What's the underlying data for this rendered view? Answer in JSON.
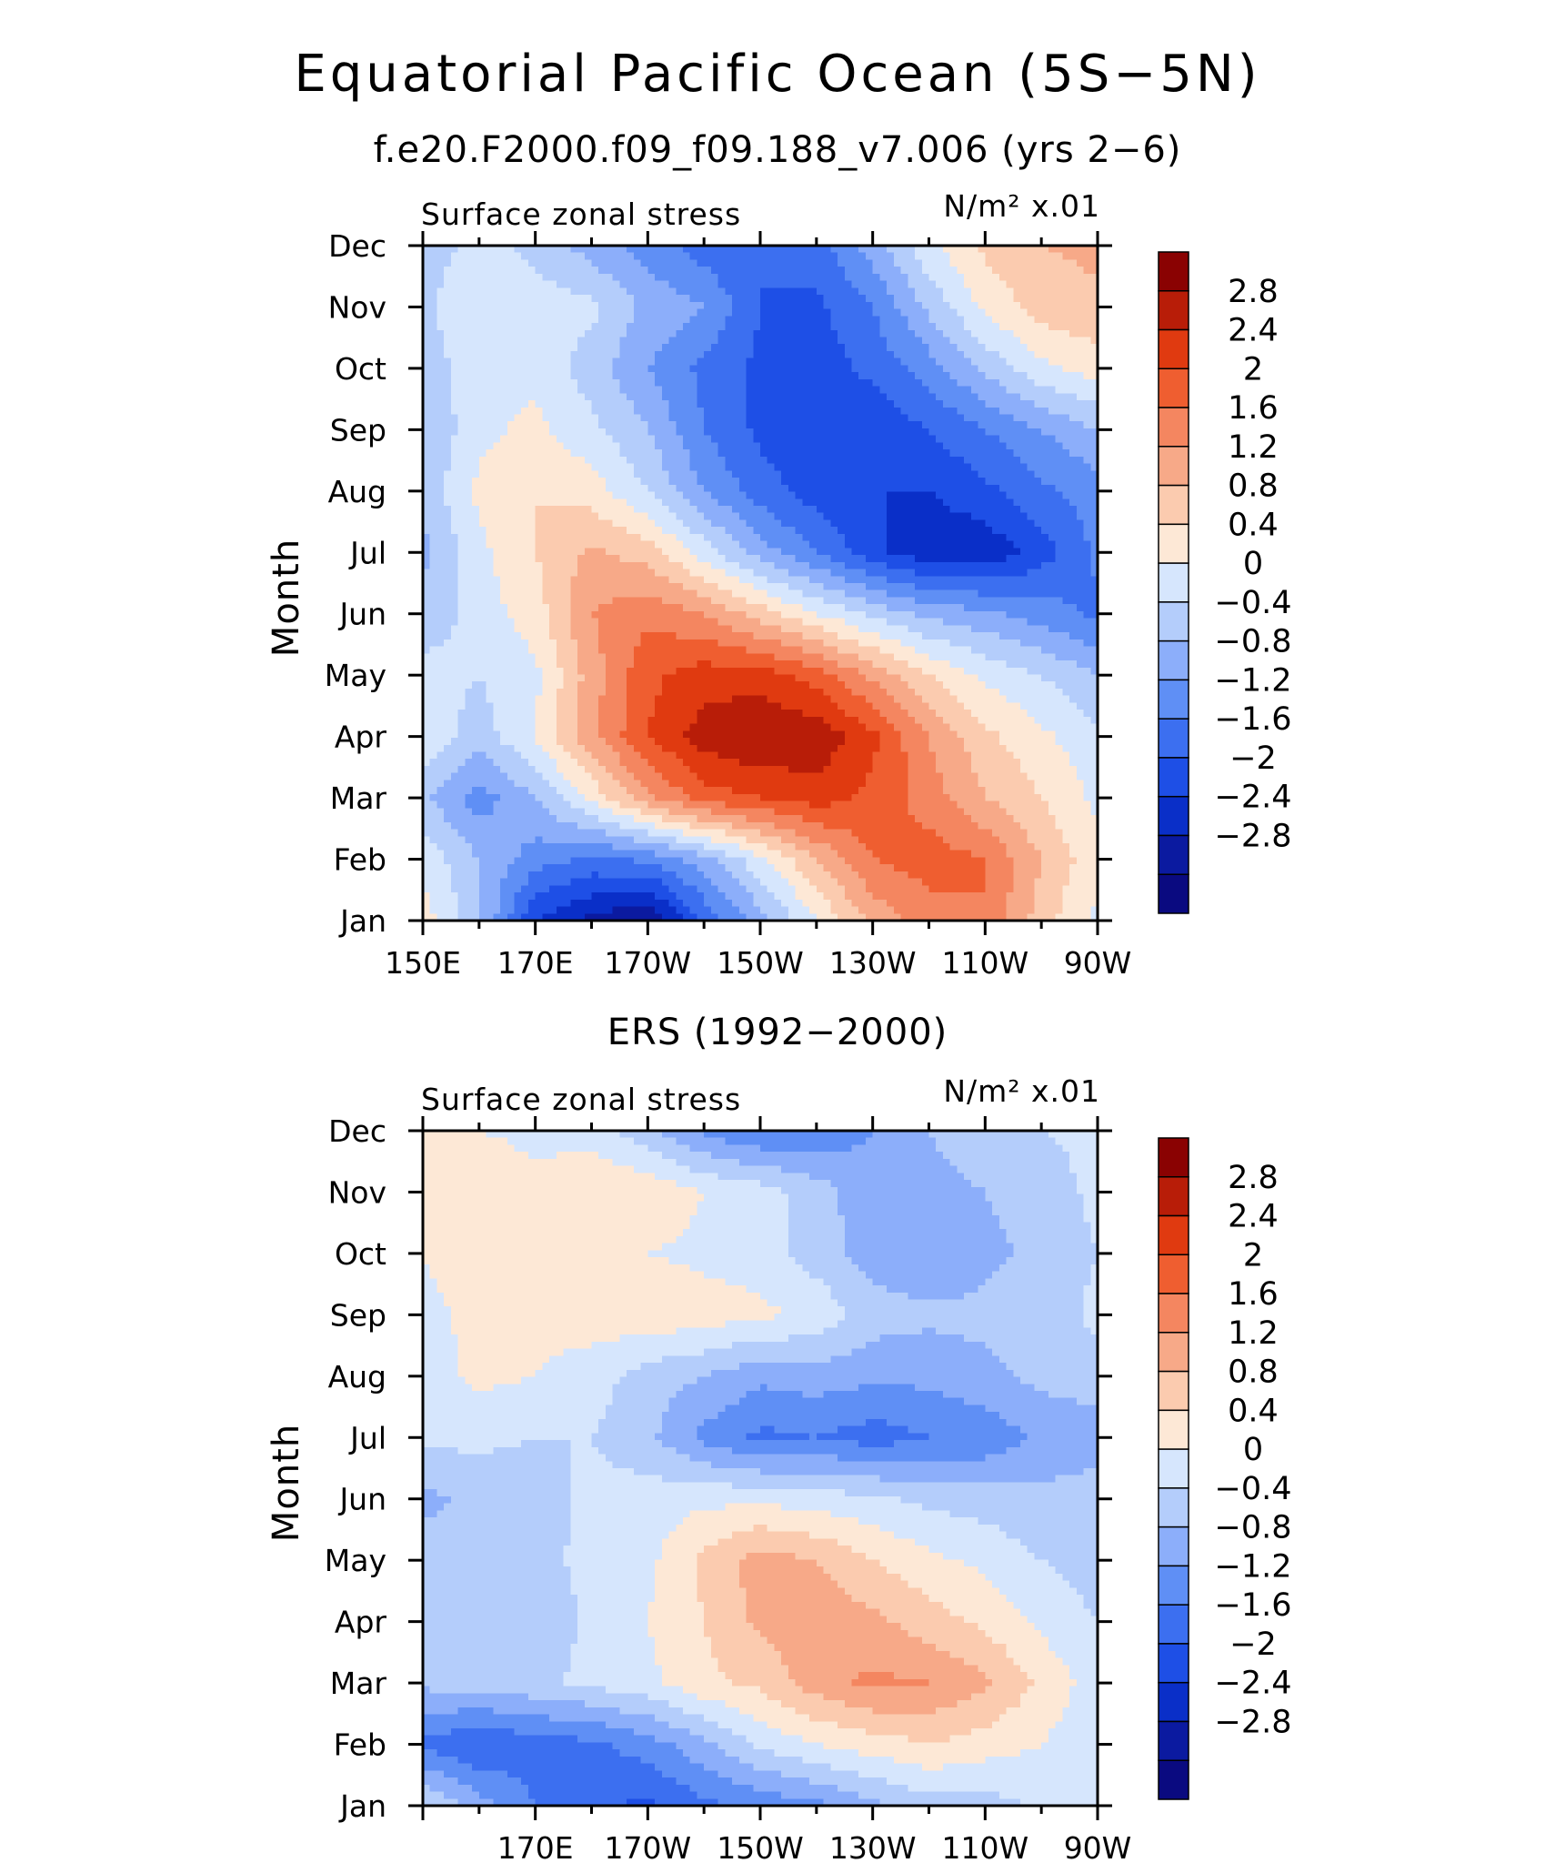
{
  "title": "Equatorial Pacific Ocean (5S−5N)",
  "palette": [
    "#0a0a80",
    "#0b1aa0",
    "#0a2fc8",
    "#1e4fe6",
    "#3c6ff0",
    "#5f8ff5",
    "#8caefa",
    "#b4cdfb",
    "#d6e6fd",
    "#fde8d6",
    "#fbcbaf",
    "#f7a988",
    "#f48660",
    "#ef5e30",
    "#e03a10",
    "#b81d08",
    "#8a0202"
  ],
  "colorbar_labels": [
    "2.8",
    "2.4",
    "2",
    "1.6",
    "1.2",
    "0.8",
    "0.4",
    "0",
    "−0.4",
    "−0.8",
    "−1.2",
    "−1.6",
    "−2",
    "−2.4",
    "−2.8"
  ],
  "chart_data": [
    {
      "type": "heatmap",
      "subtitle": "f.e20.F2000.f09_f09.188_v7.006 (yrs 2−6)",
      "left_label": "Surface zonal stress",
      "right_label": "N/m² x.01",
      "ylabel": "Month",
      "months": [
        "Jan",
        "Feb",
        "Mar",
        "Apr",
        "May",
        "Jun",
        "Jul",
        "Aug",
        "Sep",
        "Oct",
        "Nov",
        "Dec"
      ],
      "xtick_labels": [
        "150E",
        "170E",
        "170W",
        "150W",
        "130W",
        "110W",
        "90W"
      ],
      "xtick_lons": [
        150,
        170,
        190,
        210,
        230,
        250,
        270
      ],
      "xlim": [
        150,
        270
      ],
      "levels": [
        -2.8,
        -2.4,
        -2,
        -1.6,
        -1.2,
        -0.8,
        -0.4,
        0,
        0.4,
        0.8,
        1.2,
        1.6,
        2,
        2.4,
        2.8
      ],
      "lons": [
        150,
        160,
        170,
        180,
        190,
        200,
        210,
        220,
        230,
        240,
        250,
        260,
        270
      ],
      "values": [
        [
          0.6,
          -0.3,
          -2.0,
          -2.5,
          -2.9,
          -1.5,
          -0.6,
          0.4,
          1.3,
          1.8,
          2.0,
          1.0,
          0.3
        ],
        [
          0.3,
          -0.4,
          -1.0,
          -1.3,
          -1.1,
          -0.6,
          0.3,
          1.2,
          2.0,
          2.2,
          2.0,
          1.2,
          0.5
        ],
        [
          -0.3,
          -1.0,
          -0.4,
          0.5,
          1.5,
          2.2,
          2.4,
          2.6,
          2.3,
          1.8,
          1.2,
          0.8,
          0.3
        ],
        [
          0.3,
          -0.2,
          0.4,
          1.5,
          2.4,
          3.0,
          3.2,
          3.1,
          2.5,
          1.6,
          0.9,
          0.5,
          0.1
        ],
        [
          0.2,
          0.0,
          0.3,
          1.4,
          2.3,
          2.6,
          2.6,
          2.2,
          1.5,
          0.8,
          0.3,
          0.0,
          -0.4
        ],
        [
          -0.3,
          0.2,
          0.6,
          1.6,
          1.9,
          1.6,
          1.0,
          0.4,
          -0.1,
          -0.5,
          -0.7,
          -1.0,
          -1.3
        ],
        [
          -0.5,
          0.3,
          0.8,
          1.3,
          1.0,
          0.2,
          -0.6,
          -1.2,
          -1.9,
          -2.3,
          -2.3,
          -1.8,
          -1.1
        ],
        [
          -0.3,
          0.5,
          0.8,
          0.6,
          0.0,
          -0.8,
          -1.4,
          -1.8,
          -2.0,
          -2.0,
          -1.7,
          -1.3,
          -1.0
        ],
        [
          -0.4,
          0.3,
          0.5,
          0.1,
          -0.4,
          -1.2,
          -1.7,
          -2.0,
          -1.9,
          -1.6,
          -1.2,
          -0.8,
          -0.4
        ],
        [
          -0.2,
          0.2,
          0.3,
          -0.2,
          -0.8,
          -1.3,
          -1.7,
          -1.8,
          -1.5,
          -1.0,
          -0.3,
          0.3,
          0.6
        ],
        [
          -0.1,
          0.4,
          0.2,
          0.1,
          -0.5,
          -0.8,
          -1.6,
          -1.7,
          -1.2,
          -0.3,
          0.5,
          1.0,
          1.1
        ],
        [
          -0.2,
          0.1,
          -0.1,
          -0.6,
          -1.0,
          -1.4,
          -1.6,
          -1.4,
          -0.6,
          0.3,
          0.9,
          1.2,
          1.3
        ]
      ]
    },
    {
      "type": "heatmap",
      "subtitle": "ERS (1992−2000)",
      "left_label": "Surface zonal stress",
      "right_label": "N/m² x.01",
      "ylabel": "Month",
      "months": [
        "Jan",
        "Feb",
        "Mar",
        "Apr",
        "May",
        "Jun",
        "Jul",
        "Aug",
        "Sep",
        "Oct",
        "Nov",
        "Dec"
      ],
      "xtick_labels": [
        "170E",
        "170W",
        "150W",
        "130W",
        "110W",
        "90W"
      ],
      "xtick_lons": [
        170,
        190,
        210,
        230,
        250,
        270
      ],
      "xlim": [
        150,
        270
      ],
      "levels": [
        -2.8,
        -2.4,
        -2,
        -1.6,
        -1.2,
        -0.8,
        -0.4,
        0,
        0.4,
        0.8,
        1.2,
        1.6,
        2,
        2.4,
        2.8
      ],
      "lons": [
        150,
        160,
        170,
        180,
        190,
        200,
        210,
        220,
        230,
        240,
        250,
        260,
        270
      ],
      "values": [
        [
          0.1,
          -0.6,
          -1.2,
          -1.5,
          -1.7,
          -1.3,
          -1.1,
          -0.9,
          -0.5,
          -0.2,
          -0.2,
          0.1,
          0.2
        ],
        [
          -1.3,
          -1.6,
          -1.4,
          -1.3,
          -1.0,
          -0.5,
          0.1,
          0.4,
          0.6,
          0.8,
          0.6,
          0.4,
          0.1
        ],
        [
          -0.3,
          -0.2,
          -0.1,
          0.1,
          0.3,
          0.7,
          0.9,
          1.4,
          1.7,
          1.6,
          1.3,
          0.7,
          0.2
        ],
        [
          -0.1,
          -0.2,
          -0.3,
          0.1,
          0.4,
          0.8,
          1.3,
          1.5,
          1.3,
          1.0,
          0.7,
          0.3,
          0.0
        ],
        [
          -0.2,
          -0.3,
          -0.1,
          0.1,
          0.3,
          0.9,
          1.4,
          1.2,
          0.8,
          0.5,
          0.3,
          0.0,
          -0.2
        ],
        [
          -0.5,
          -0.3,
          -0.2,
          0.1,
          0.2,
          0.3,
          0.3,
          0.2,
          0.1,
          -0.1,
          -0.2,
          -0.3,
          -0.2
        ],
        [
          0.1,
          0.1,
          0.0,
          0.0,
          -0.3,
          -0.9,
          -1.3,
          -1.2,
          -1.4,
          -1.2,
          -1.1,
          -0.7,
          -0.6
        ],
        [
          0.2,
          0.5,
          0.4,
          0.2,
          -0.2,
          -0.4,
          -0.7,
          -0.6,
          -0.7,
          -0.7,
          -0.5,
          -0.3,
          -0.2
        ],
        [
          0.3,
          0.5,
          0.5,
          0.6,
          0.7,
          0.6,
          0.5,
          0.3,
          -0.2,
          -0.3,
          -0.3,
          -0.2,
          0.1
        ],
        [
          0.4,
          0.6,
          0.6,
          0.5,
          0.4,
          0.3,
          0.2,
          -0.2,
          -0.6,
          -0.8,
          -0.5,
          -0.3,
          0.0
        ],
        [
          0.5,
          0.7,
          0.5,
          0.8,
          0.7,
          0.4,
          0.2,
          -0.2,
          -0.7,
          -0.5,
          -0.4,
          -0.2,
          0.1
        ],
        [
          0.6,
          0.4,
          0.3,
          0.2,
          -0.3,
          -0.9,
          -1.2,
          -1.1,
          -0.8,
          -0.4,
          -0.2,
          0.0,
          0.1
        ]
      ]
    }
  ]
}
